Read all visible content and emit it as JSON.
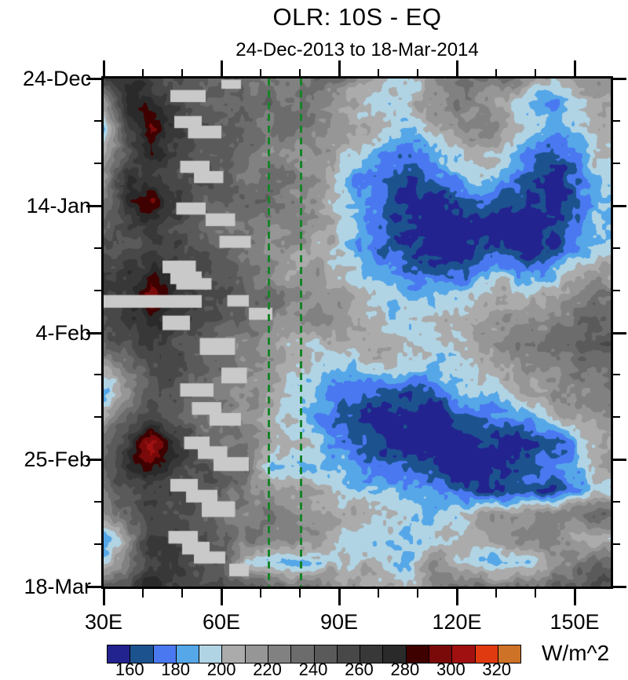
{
  "chart_data": {
    "type": "heatmap",
    "title": "OLR: 10S - EQ",
    "subtitle": "24-Dec-2013 to 18-Mar-2014",
    "units": "W/m^2",
    "x_axis": {
      "labels": [
        "30E",
        "60E",
        "90E",
        "120E",
        "150E"
      ],
      "major_lons": [
        30,
        60,
        90,
        120,
        150
      ],
      "minor_lons": [
        40,
        50,
        70,
        80,
        100,
        110,
        130,
        140
      ],
      "lon_range": [
        30,
        159.2
      ]
    },
    "y_axis": {
      "labels": [
        "24-Dec",
        "14-Jan",
        "4-Feb",
        "25-Feb",
        "18-Mar"
      ],
      "major_days": [
        0,
        21,
        42,
        63,
        84
      ],
      "minor_days": [
        7,
        14,
        28,
        35,
        49,
        56,
        70,
        77
      ],
      "day_range": [
        0,
        84
      ]
    },
    "grid": {
      "lons": [
        30,
        36,
        42,
        48,
        54,
        60,
        66,
        72,
        78,
        84,
        90,
        96,
        102,
        108,
        114,
        120,
        126,
        132,
        138,
        144,
        150,
        156
      ],
      "days": [
        0,
        4,
        8,
        12,
        16,
        20,
        24,
        28,
        32,
        36,
        40,
        44,
        48,
        52,
        56,
        60,
        64,
        68,
        72,
        76,
        80,
        84
      ],
      "values": [
        [
          262,
          268,
          258,
          248,
          240,
          244,
          234,
          228,
          224,
          230,
          224,
          214,
          204,
          196,
          212,
          226,
          234,
          228,
          208,
          196,
          206,
          224
        ],
        [
          205,
          272,
          268,
          254,
          244,
          234,
          230,
          238,
          228,
          218,
          208,
          196,
          186,
          200,
          214,
          228,
          218,
          204,
          186,
          176,
          196,
          214
        ],
        [
          196,
          258,
          292,
          264,
          248,
          240,
          234,
          228,
          238,
          228,
          214,
          204,
          196,
          190,
          204,
          218,
          228,
          214,
          196,
          182,
          190,
          208
        ],
        [
          204,
          248,
          288,
          258,
          244,
          248,
          238,
          224,
          214,
          224,
          204,
          190,
          180,
          176,
          186,
          200,
          210,
          196,
          182,
          172,
          186,
          204
        ],
        [
          214,
          262,
          254,
          248,
          252,
          244,
          230,
          234,
          224,
          210,
          196,
          180,
          170,
          166,
          170,
          186,
          196,
          180,
          166,
          156,
          172,
          190
        ],
        [
          228,
          268,
          288,
          258,
          248,
          240,
          244,
          228,
          220,
          214,
          200,
          186,
          170,
          160,
          155,
          164,
          176,
          164,
          155,
          150,
          166,
          186
        ],
        [
          244,
          258,
          268,
          254,
          244,
          234,
          228,
          220,
          228,
          218,
          204,
          190,
          175,
          160,
          150,
          154,
          160,
          150,
          148,
          156,
          172,
          190
        ],
        [
          250,
          254,
          264,
          258,
          248,
          244,
          234,
          224,
          214,
          204,
          196,
          184,
          170,
          164,
          157,
          150,
          155,
          160,
          150,
          162,
          182,
          200
        ],
        [
          254,
          264,
          274,
          264,
          254,
          248,
          238,
          228,
          200,
          214,
          204,
          194,
          184,
          176,
          170,
          166,
          176,
          186,
          176,
          186,
          200,
          214
        ],
        [
          258,
          268,
          298,
          274,
          258,
          248,
          244,
          234,
          224,
          214,
          210,
          200,
          195,
          190,
          186,
          190,
          200,
          210,
          200,
          210,
          220,
          230
        ],
        [
          248,
          264,
          280,
          268,
          254,
          244,
          234,
          224,
          214,
          220,
          214,
          204,
          200,
          196,
          200,
          210,
          214,
          220,
          214,
          224,
          234,
          240
        ],
        [
          234,
          254,
          268,
          258,
          248,
          238,
          228,
          218,
          208,
          200,
          204,
          210,
          204,
          200,
          196,
          204,
          214,
          224,
          230,
          234,
          240,
          244
        ],
        [
          204,
          228,
          248,
          254,
          244,
          234,
          224,
          214,
          204,
          194,
          190,
          195,
          200,
          190,
          186,
          190,
          200,
          210,
          220,
          224,
          230,
          234
        ],
        [
          186,
          214,
          238,
          248,
          238,
          228,
          218,
          208,
          194,
          184,
          180,
          174,
          168,
          164,
          170,
          180,
          190,
          200,
          210,
          220,
          224,
          228
        ],
        [
          214,
          238,
          254,
          244,
          234,
          224,
          214,
          204,
          190,
          180,
          170,
          164,
          158,
          154,
          150,
          160,
          170,
          180,
          190,
          200,
          210,
          220
        ],
        [
          228,
          258,
          298,
          268,
          248,
          234,
          224,
          214,
          200,
          190,
          180,
          170,
          160,
          150,
          148,
          150,
          160,
          150,
          155,
          165,
          180,
          200
        ],
        [
          238,
          268,
          284,
          264,
          254,
          244,
          234,
          196,
          186,
          192,
          190,
          180,
          170,
          164,
          157,
          154,
          150,
          155,
          165,
          175,
          190,
          210
        ],
        [
          234,
          254,
          264,
          258,
          248,
          238,
          228,
          218,
          214,
          204,
          200,
          194,
          188,
          182,
          174,
          165,
          158,
          154,
          164,
          158,
          175,
          195
        ],
        [
          215,
          240,
          258,
          254,
          244,
          234,
          228,
          224,
          218,
          214,
          210,
          204,
          200,
          194,
          190,
          196,
          205,
          214,
          220,
          224,
          230,
          234
        ],
        [
          182,
          212,
          262,
          258,
          248,
          244,
          238,
          228,
          224,
          218,
          210,
          200,
          192,
          188,
          192,
          202,
          212,
          220,
          224,
          228,
          210,
          198
        ],
        [
          190,
          228,
          268,
          262,
          254,
          248,
          200,
          190,
          186,
          196,
          200,
          204,
          198,
          192,
          225,
          200,
          190,
          180,
          195,
          215,
          228,
          238
        ],
        [
          240,
          254,
          274,
          268,
          258,
          254,
          248,
          238,
          234,
          228,
          218,
          208,
          204,
          200,
          230,
          235,
          228,
          224,
          234,
          238,
          244,
          248
        ]
      ]
    },
    "colorbar": {
      "levels": [
        160,
        170,
        180,
        190,
        200,
        210,
        220,
        230,
        240,
        250,
        260,
        270,
        280,
        290,
        300,
        310,
        320
      ],
      "tick_labels": [
        "160",
        "180",
        "200",
        "220",
        "240",
        "260",
        "280",
        "300",
        "320"
      ],
      "colors": [
        "#23238f",
        "#1c538f",
        "#4a78f0",
        "#55a7e8",
        "#b0d4e4",
        "#ababab",
        "#969696",
        "#818181",
        "#6c6c6c",
        "#5a5a5a",
        "#484848",
        "#383838",
        "#2a2a2a",
        "#3f0000",
        "#7a0a0a",
        "#a01010",
        "#e03a10",
        "#cd7226"
      ]
    },
    "missing_data_color": "#c9c9c9",
    "missing_blocks": [
      {
        "lon": [
          60,
          65
        ],
        "day": [
          0.2,
          1.7
        ]
      },
      {
        "lon": [
          47,
          56
        ],
        "day": [
          1.9,
          3.9
        ]
      },
      {
        "lon": [
          48,
          55
        ],
        "day": [
          6.2,
          8.2
        ]
      },
      {
        "lon": [
          51.5,
          60
        ],
        "day": [
          7.8,
          9.9
        ]
      },
      {
        "lon": [
          49.5,
          57
        ],
        "day": [
          13.6,
          15.6
        ]
      },
      {
        "lon": [
          53,
          60.5
        ],
        "day": [
          15.3,
          17.3
        ]
      },
      {
        "lon": [
          48.5,
          56
        ],
        "day": [
          20.5,
          22.5
        ]
      },
      {
        "lon": [
          56,
          63.5
        ],
        "day": [
          22.3,
          24.4
        ]
      },
      {
        "lon": [
          59.5,
          67.5
        ],
        "day": [
          26,
          28
        ]
      },
      {
        "lon": [
          45,
          53.5
        ],
        "day": [
          30.1,
          32.2
        ]
      },
      {
        "lon": [
          47,
          55
        ],
        "day": [
          31.9,
          34
        ]
      },
      {
        "lon": [
          48.5,
          57.5
        ],
        "day": [
          33,
          34.9
        ]
      },
      {
        "lon": [
          30,
          55
        ],
        "day": [
          35.8,
          37.9
        ]
      },
      {
        "lon": [
          61.5,
          67
        ],
        "day": [
          35.8,
          37.7
        ]
      },
      {
        "lon": [
          67,
          73
        ],
        "day": [
          37.9,
          39.9
        ]
      },
      {
        "lon": [
          45,
          52
        ],
        "day": [
          39.2,
          41.6
        ]
      },
      {
        "lon": [
          54.5,
          63.5
        ],
        "day": [
          42.9,
          45.7
        ]
      },
      {
        "lon": [
          60,
          66.5
        ],
        "day": [
          47.8,
          50.4
        ]
      },
      {
        "lon": [
          49.5,
          58
        ],
        "day": [
          50.4,
          52.6
        ]
      },
      {
        "lon": [
          52.5,
          60
        ],
        "day": [
          53.5,
          55.6
        ]
      },
      {
        "lon": [
          57,
          65
        ],
        "day": [
          55.3,
          57.4
        ]
      },
      {
        "lon": [
          50.5,
          57
        ],
        "day": [
          59.2,
          61.3
        ]
      },
      {
        "lon": [
          54,
          61.5
        ],
        "day": [
          60.8,
          62.9
        ]
      },
      {
        "lon": [
          58,
          67
        ],
        "day": [
          62.6,
          64.9
        ]
      },
      {
        "lon": [
          47,
          54
        ],
        "day": [
          66.2,
          68.3
        ]
      },
      {
        "lon": [
          51,
          59
        ],
        "day": [
          68,
          70.1
        ]
      },
      {
        "lon": [
          55,
          63.5
        ],
        "day": [
          69.9,
          72.5
        ]
      },
      {
        "lon": [
          46.5,
          54
        ],
        "day": [
          74.8,
          76.9
        ]
      },
      {
        "lon": [
          50,
          57
        ],
        "day": [
          76.6,
          78.7
        ]
      },
      {
        "lon": [
          53,
          61
        ],
        "day": [
          78.2,
          80.2
        ]
      },
      {
        "lon": [
          62,
          67
        ],
        "day": [
          80.2,
          82.3
        ]
      }
    ],
    "reference_lines": {
      "lons": [
        72.2,
        80.4
      ],
      "color": "#168428",
      "style": "dashed"
    }
  }
}
